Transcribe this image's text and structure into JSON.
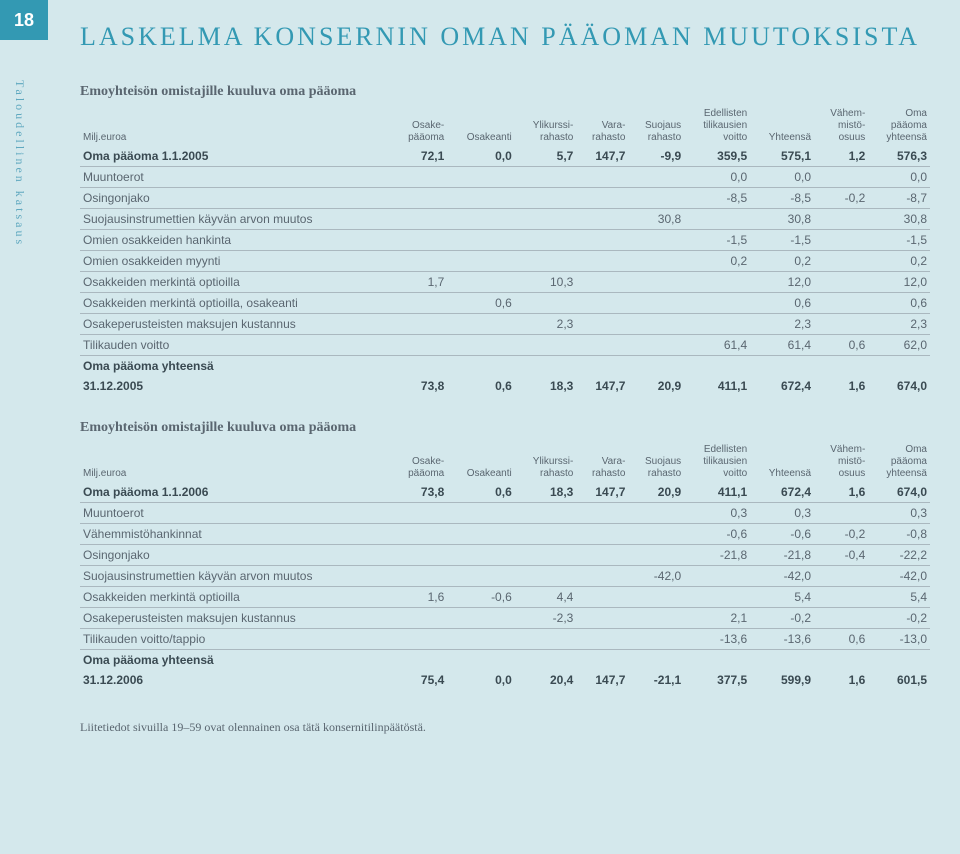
{
  "page_number": "18",
  "sidebar_label": "Taloudellinen katsaus",
  "main_title": "LASKELMA KONSERNIN OMAN PÄÄOMAN MUUTOKSISTA",
  "colors": {
    "page_bg": "#d4e8ec",
    "accent": "#3399b3",
    "text": "#5a6670",
    "underline": "#aab8bf"
  },
  "columns": [
    {
      "label": "Milj.euroa",
      "align": "left"
    },
    {
      "label": "Osake-\npääoma",
      "align": "right"
    },
    {
      "label": "Osakeanti",
      "align": "right"
    },
    {
      "label": "Ylikurssi-\nrahasto",
      "align": "right"
    },
    {
      "label": "Vara-\nrahasto",
      "align": "right"
    },
    {
      "label": "Suojaus\nrahasto",
      "align": "right"
    },
    {
      "label": "Edellisten\ntilikausien\nvoitto",
      "align": "right"
    },
    {
      "label": "Yhteensä",
      "align": "right"
    },
    {
      "label": "Vähem-\nmistö-\nosuus",
      "align": "right"
    },
    {
      "label": "Oma\npääoma\nyhteensä",
      "align": "right"
    }
  ],
  "table1": {
    "title": "Emoyhteisön omistajille kuuluva oma pääoma",
    "rows": [
      {
        "label": "Oma pääoma 1.1.2005",
        "v": [
          "72,1",
          "0,0",
          "5,7",
          "147,7",
          "-9,9",
          "359,5",
          "575,1",
          "1,2",
          "576,3"
        ],
        "bold": true,
        "ul": true
      },
      {
        "label": "Muuntoerot",
        "v": [
          "",
          "",
          "",
          "",
          "",
          "0,0",
          "0,0",
          "",
          "0,0"
        ],
        "ul": true
      },
      {
        "label": "Osingonjako",
        "v": [
          "",
          "",
          "",
          "",
          "",
          "-8,5",
          "-8,5",
          "-0,2",
          "-8,7"
        ],
        "ul": true
      },
      {
        "label": "Suojausinstrumettien käyvän arvon muutos",
        "v": [
          "",
          "",
          "",
          "",
          "30,8",
          "",
          "30,8",
          "",
          "30,8"
        ],
        "ul": true
      },
      {
        "label": "Omien osakkeiden hankinta",
        "v": [
          "",
          "",
          "",
          "",
          "",
          "-1,5",
          "-1,5",
          "",
          "-1,5"
        ],
        "ul": true
      },
      {
        "label": "Omien osakkeiden myynti",
        "v": [
          "",
          "",
          "",
          "",
          "",
          "0,2",
          "0,2",
          "",
          "0,2"
        ],
        "ul": true
      },
      {
        "label": "Osakkeiden merkintä optioilla",
        "v": [
          "1,7",
          "",
          "10,3",
          "",
          "",
          "",
          "12,0",
          "",
          "12,0"
        ],
        "ul": true
      },
      {
        "label": "Osakkeiden merkintä optioilla, osakeanti",
        "v": [
          "",
          "0,6",
          "",
          "",
          "",
          "",
          "0,6",
          "",
          "0,6"
        ],
        "ul": true
      },
      {
        "label": "Osakeperusteisten maksujen kustannus",
        "v": [
          "",
          "",
          "2,3",
          "",
          "",
          "",
          "2,3",
          "",
          "2,3"
        ],
        "ul": true
      },
      {
        "label": "Tilikauden voitto",
        "v": [
          "",
          "",
          "",
          "",
          "",
          "61,4",
          "61,4",
          "0,6",
          "62,0"
        ],
        "ul": true
      },
      {
        "label": "Oma pääoma yhteensä",
        "v": [
          "",
          "",
          "",
          "",
          "",
          "",
          "",
          "",
          ""
        ],
        "bold": true
      },
      {
        "label": "31.12.2005",
        "v": [
          "73,8",
          "0,6",
          "18,3",
          "147,7",
          "20,9",
          "411,1",
          "672,4",
          "1,6",
          "674,0"
        ],
        "bold": true
      }
    ]
  },
  "table2": {
    "title": "Emoyhteisön omistajille kuuluva oma pääoma",
    "rows": [
      {
        "label": "Oma pääoma 1.1.2006",
        "v": [
          "73,8",
          "0,6",
          "18,3",
          "147,7",
          "20,9",
          "411,1",
          "672,4",
          "1,6",
          "674,0"
        ],
        "bold": true,
        "ul": true
      },
      {
        "label": "Muuntoerot",
        "v": [
          "",
          "",
          "",
          "",
          "",
          "0,3",
          "0,3",
          "",
          "0,3"
        ],
        "ul": true
      },
      {
        "label": "Vähemmistöhankinnat",
        "v": [
          "",
          "",
          "",
          "",
          "",
          "-0,6",
          "-0,6",
          "-0,2",
          "-0,8"
        ],
        "ul": true
      },
      {
        "label": "Osingonjako",
        "v": [
          "",
          "",
          "",
          "",
          "",
          "-21,8",
          "-21,8",
          "-0,4",
          "-22,2"
        ],
        "ul": true
      },
      {
        "label": "Suojausinstrumettien käyvän arvon muutos",
        "v": [
          "",
          "",
          "",
          "",
          "-42,0",
          "",
          "-42,0",
          "",
          "-42,0"
        ],
        "ul": true
      },
      {
        "label": "Osakkeiden merkintä optioilla",
        "v": [
          "1,6",
          "-0,6",
          "4,4",
          "",
          "",
          "",
          "5,4",
          "",
          "5,4"
        ],
        "ul": true
      },
      {
        "label": "Osakeperusteisten maksujen kustannus",
        "v": [
          "",
          "",
          "-2,3",
          "",
          "",
          "2,1",
          "-0,2",
          "",
          "-0,2"
        ],
        "ul": true
      },
      {
        "label": "Tilikauden voitto/tappio",
        "v": [
          "",
          "",
          "",
          "",
          "",
          "-13,6",
          "-13,6",
          "0,6",
          "-13,0"
        ],
        "ul": true
      },
      {
        "label": "Oma pääoma yhteensä",
        "v": [
          "",
          "",
          "",
          "",
          "",
          "",
          "",
          "",
          ""
        ],
        "bold": true
      },
      {
        "label": "31.12.2006",
        "v": [
          "75,4",
          "0,0",
          "20,4",
          "147,7",
          "-21,1",
          "377,5",
          "599,9",
          "1,6",
          "601,5"
        ],
        "bold": true
      }
    ]
  },
  "footnote": "Liitetiedot sivuilla 19–59 ovat olennainen osa tätä konsernitilinpäätöstä."
}
